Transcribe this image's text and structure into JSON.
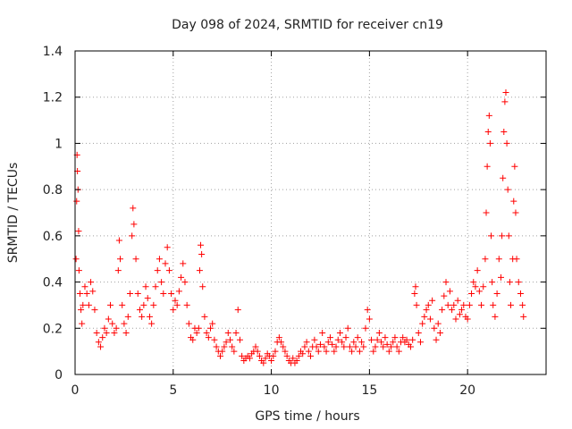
{
  "chart_data": {
    "type": "scatter",
    "title": "Day 098 of 2024, SRMTID for receiver cn19",
    "xlabel": "GPS time / hours",
    "ylabel": "SRMTID / TECUs",
    "xlim": [
      0,
      24
    ],
    "ylim": [
      0,
      1.4
    ],
    "x_ticks": [
      0,
      5,
      10,
      15,
      20
    ],
    "x_tick_labels": [
      "0",
      "5",
      "10",
      "15",
      "20"
    ],
    "y_ticks": [
      0,
      0.2,
      0.4,
      0.6,
      0.8,
      1.0,
      1.2,
      1.4
    ],
    "y_tick_labels": [
      "0",
      "0.2",
      "0.4",
      "0.6",
      "0.8",
      "1",
      "1.2",
      "1.4"
    ],
    "grid": true,
    "marker": "+",
    "color": "#ff0000",
    "series": [
      {
        "name": "SRMTID",
        "points": [
          [
            0.05,
            0.5
          ],
          [
            0.08,
            0.75
          ],
          [
            0.1,
            0.95
          ],
          [
            0.12,
            0.88
          ],
          [
            0.15,
            0.8
          ],
          [
            0.18,
            0.62
          ],
          [
            0.2,
            0.45
          ],
          [
            0.25,
            0.35
          ],
          [
            0.3,
            0.28
          ],
          [
            0.35,
            0.22
          ],
          [
            0.4,
            0.3
          ],
          [
            0.5,
            0.38
          ],
          [
            0.6,
            0.35
          ],
          [
            0.7,
            0.3
          ],
          [
            0.8,
            0.4
          ],
          [
            0.9,
            0.36
          ],
          [
            1.0,
            0.28
          ],
          [
            1.1,
            0.18
          ],
          [
            1.2,
            0.14
          ],
          [
            1.3,
            0.12
          ],
          [
            1.4,
            0.16
          ],
          [
            1.5,
            0.2
          ],
          [
            1.6,
            0.18
          ],
          [
            1.7,
            0.24
          ],
          [
            1.8,
            0.3
          ],
          [
            1.9,
            0.22
          ],
          [
            2.0,
            0.18
          ],
          [
            2.1,
            0.2
          ],
          [
            2.2,
            0.45
          ],
          [
            2.25,
            0.58
          ],
          [
            2.3,
            0.5
          ],
          [
            2.4,
            0.3
          ],
          [
            2.5,
            0.22
          ],
          [
            2.6,
            0.18
          ],
          [
            2.7,
            0.25
          ],
          [
            2.8,
            0.35
          ],
          [
            2.9,
            0.6
          ],
          [
            2.95,
            0.72
          ],
          [
            3.0,
            0.65
          ],
          [
            3.1,
            0.5
          ],
          [
            3.2,
            0.35
          ],
          [
            3.3,
            0.28
          ],
          [
            3.4,
            0.25
          ],
          [
            3.5,
            0.3
          ],
          [
            3.6,
            0.38
          ],
          [
            3.7,
            0.33
          ],
          [
            3.8,
            0.25
          ],
          [
            3.9,
            0.22
          ],
          [
            4.0,
            0.3
          ],
          [
            4.1,
            0.38
          ],
          [
            4.2,
            0.45
          ],
          [
            4.3,
            0.5
          ],
          [
            4.4,
            0.4
          ],
          [
            4.5,
            0.35
          ],
          [
            4.6,
            0.48
          ],
          [
            4.7,
            0.55
          ],
          [
            4.8,
            0.45
          ],
          [
            4.9,
            0.35
          ],
          [
            5.0,
            0.28
          ],
          [
            5.1,
            0.32
          ],
          [
            5.2,
            0.3
          ],
          [
            5.3,
            0.36
          ],
          [
            5.4,
            0.42
          ],
          [
            5.5,
            0.48
          ],
          [
            5.6,
            0.4
          ],
          [
            5.7,
            0.3
          ],
          [
            5.8,
            0.22
          ],
          [
            5.9,
            0.16
          ],
          [
            6.0,
            0.15
          ],
          [
            6.1,
            0.2
          ],
          [
            6.2,
            0.18
          ],
          [
            6.3,
            0.2
          ],
          [
            6.35,
            0.45
          ],
          [
            6.4,
            0.56
          ],
          [
            6.45,
            0.52
          ],
          [
            6.5,
            0.38
          ],
          [
            6.6,
            0.25
          ],
          [
            6.7,
            0.18
          ],
          [
            6.8,
            0.16
          ],
          [
            6.9,
            0.2
          ],
          [
            7.0,
            0.22
          ],
          [
            7.1,
            0.15
          ],
          [
            7.2,
            0.12
          ],
          [
            7.3,
            0.1
          ],
          [
            7.4,
            0.08
          ],
          [
            7.5,
            0.1
          ],
          [
            7.6,
            0.12
          ],
          [
            7.7,
            0.14
          ],
          [
            7.8,
            0.18
          ],
          [
            7.9,
            0.15
          ],
          [
            8.0,
            0.12
          ],
          [
            8.1,
            0.1
          ],
          [
            8.2,
            0.18
          ],
          [
            8.3,
            0.28
          ],
          [
            8.4,
            0.15
          ],
          [
            8.5,
            0.08
          ],
          [
            8.6,
            0.06
          ],
          [
            8.7,
            0.07
          ],
          [
            8.8,
            0.08
          ],
          [
            8.9,
            0.07
          ],
          [
            9.0,
            0.09
          ],
          [
            9.1,
            0.1
          ],
          [
            9.2,
            0.12
          ],
          [
            9.3,
            0.1
          ],
          [
            9.4,
            0.08
          ],
          [
            9.5,
            0.06
          ],
          [
            9.6,
            0.05
          ],
          [
            9.7,
            0.07
          ],
          [
            9.8,
            0.09
          ],
          [
            9.9,
            0.08
          ],
          [
            10.0,
            0.06
          ],
          [
            10.1,
            0.08
          ],
          [
            10.2,
            0.1
          ],
          [
            10.3,
            0.14
          ],
          [
            10.4,
            0.16
          ],
          [
            10.5,
            0.14
          ],
          [
            10.6,
            0.12
          ],
          [
            10.7,
            0.1
          ],
          [
            10.8,
            0.08
          ],
          [
            10.9,
            0.06
          ],
          [
            11.0,
            0.05
          ],
          [
            11.1,
            0.07
          ],
          [
            11.2,
            0.05
          ],
          [
            11.3,
            0.06
          ],
          [
            11.4,
            0.08
          ],
          [
            11.5,
            0.1
          ],
          [
            11.6,
            0.09
          ],
          [
            11.7,
            0.12
          ],
          [
            11.8,
            0.14
          ],
          [
            11.9,
            0.1
          ],
          [
            12.0,
            0.08
          ],
          [
            12.1,
            0.12
          ],
          [
            12.2,
            0.15
          ],
          [
            12.3,
            0.12
          ],
          [
            12.4,
            0.1
          ],
          [
            12.5,
            0.13
          ],
          [
            12.6,
            0.18
          ],
          [
            12.7,
            0.12
          ],
          [
            12.8,
            0.1
          ],
          [
            12.9,
            0.14
          ],
          [
            13.0,
            0.16
          ],
          [
            13.1,
            0.13
          ],
          [
            13.2,
            0.1
          ],
          [
            13.3,
            0.12
          ],
          [
            13.4,
            0.15
          ],
          [
            13.5,
            0.18
          ],
          [
            13.6,
            0.14
          ],
          [
            13.7,
            0.12
          ],
          [
            13.8,
            0.16
          ],
          [
            13.9,
            0.2
          ],
          [
            14.0,
            0.12
          ],
          [
            14.1,
            0.1
          ],
          [
            14.2,
            0.14
          ],
          [
            14.3,
            0.12
          ],
          [
            14.4,
            0.16
          ],
          [
            14.5,
            0.1
          ],
          [
            14.6,
            0.14
          ],
          [
            14.7,
            0.12
          ],
          [
            14.8,
            0.2
          ],
          [
            14.9,
            0.28
          ],
          [
            15.0,
            0.24
          ],
          [
            15.1,
            0.15
          ],
          [
            15.2,
            0.1
          ],
          [
            15.3,
            0.12
          ],
          [
            15.4,
            0.15
          ],
          [
            15.5,
            0.18
          ],
          [
            15.6,
            0.14
          ],
          [
            15.7,
            0.12
          ],
          [
            15.8,
            0.16
          ],
          [
            15.9,
            0.13
          ],
          [
            16.0,
            0.1
          ],
          [
            16.1,
            0.12
          ],
          [
            16.2,
            0.14
          ],
          [
            16.3,
            0.16
          ],
          [
            16.4,
            0.12
          ],
          [
            16.5,
            0.1
          ],
          [
            16.6,
            0.14
          ],
          [
            16.7,
            0.16
          ],
          [
            16.8,
            0.14
          ],
          [
            16.9,
            0.15
          ],
          [
            17.0,
            0.13
          ],
          [
            17.1,
            0.12
          ],
          [
            17.2,
            0.15
          ],
          [
            17.3,
            0.35
          ],
          [
            17.35,
            0.38
          ],
          [
            17.4,
            0.3
          ],
          [
            17.5,
            0.18
          ],
          [
            17.6,
            0.14
          ],
          [
            17.7,
            0.22
          ],
          [
            17.8,
            0.25
          ],
          [
            17.9,
            0.28
          ],
          [
            18.0,
            0.3
          ],
          [
            18.1,
            0.24
          ],
          [
            18.2,
            0.32
          ],
          [
            18.3,
            0.2
          ],
          [
            18.4,
            0.15
          ],
          [
            18.5,
            0.22
          ],
          [
            18.6,
            0.18
          ],
          [
            18.7,
            0.28
          ],
          [
            18.8,
            0.34
          ],
          [
            18.9,
            0.4
          ],
          [
            19.0,
            0.3
          ],
          [
            19.1,
            0.36
          ],
          [
            19.2,
            0.28
          ],
          [
            19.3,
            0.3
          ],
          [
            19.4,
            0.24
          ],
          [
            19.5,
            0.32
          ],
          [
            19.6,
            0.26
          ],
          [
            19.7,
            0.28
          ],
          [
            19.8,
            0.3
          ],
          [
            19.9,
            0.25
          ],
          [
            20.0,
            0.24
          ],
          [
            20.1,
            0.3
          ],
          [
            20.2,
            0.35
          ],
          [
            20.3,
            0.4
          ],
          [
            20.4,
            0.38
          ],
          [
            20.5,
            0.45
          ],
          [
            20.6,
            0.36
          ],
          [
            20.7,
            0.3
          ],
          [
            20.8,
            0.38
          ],
          [
            20.9,
            0.5
          ],
          [
            20.95,
            0.7
          ],
          [
            21.0,
            0.9
          ],
          [
            21.05,
            1.05
          ],
          [
            21.1,
            1.12
          ],
          [
            21.15,
            1.0
          ],
          [
            21.2,
            0.6
          ],
          [
            21.25,
            0.4
          ],
          [
            21.3,
            0.3
          ],
          [
            21.4,
            0.25
          ],
          [
            21.5,
            0.35
          ],
          [
            21.6,
            0.5
          ],
          [
            21.7,
            0.42
          ],
          [
            21.75,
            0.6
          ],
          [
            21.8,
            0.85
          ],
          [
            21.85,
            1.05
          ],
          [
            21.9,
            1.18
          ],
          [
            21.95,
            1.22
          ],
          [
            22.0,
            1.0
          ],
          [
            22.05,
            0.8
          ],
          [
            22.1,
            0.6
          ],
          [
            22.15,
            0.4
          ],
          [
            22.2,
            0.3
          ],
          [
            22.3,
            0.5
          ],
          [
            22.35,
            0.75
          ],
          [
            22.4,
            0.9
          ],
          [
            22.45,
            0.7
          ],
          [
            22.5,
            0.5
          ],
          [
            22.6,
            0.4
          ],
          [
            22.7,
            0.35
          ],
          [
            22.8,
            0.3
          ],
          [
            22.85,
            0.25
          ]
        ]
      }
    ]
  }
}
